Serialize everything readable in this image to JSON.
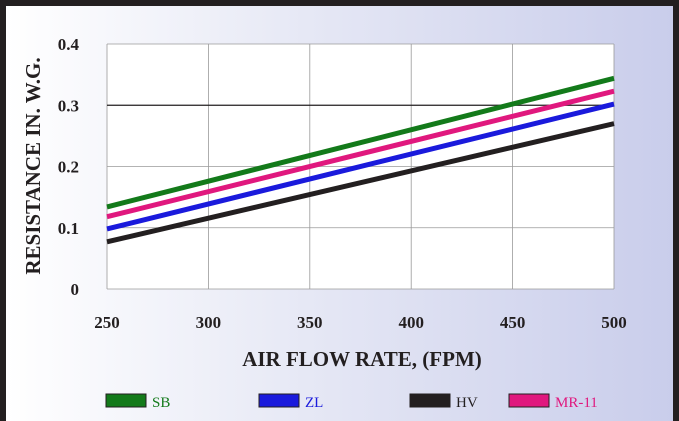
{
  "chart_data": {
    "type": "line",
    "xlabel": "AIR FLOW RATE, (FPM)",
    "ylabel": "RESISTANCE IN. W.G.",
    "x": [
      250,
      500
    ],
    "xticks": [
      250,
      300,
      350,
      400,
      450,
      500
    ],
    "yticks": [
      0,
      0.1,
      0.2,
      0.3,
      0.4
    ],
    "xtick_labels": [
      "250",
      "300",
      "350",
      "400",
      "450",
      "500"
    ],
    "ytick_labels": [
      "0",
      "0.1",
      "0.2",
      "0.3",
      "0.4"
    ],
    "xlim": [
      250,
      500
    ],
    "ylim": [
      0,
      0.4
    ],
    "grid": true,
    "legend_position": "bottom",
    "series": [
      {
        "name": "SB",
        "color": "#137a1a",
        "values": [
          0.134,
          0.344
        ]
      },
      {
        "name": "ZL",
        "color": "#1a1adc",
        "values": [
          0.098,
          0.302
        ]
      },
      {
        "name": "HV",
        "color": "#231f20",
        "values": [
          0.077,
          0.27
        ]
      },
      {
        "name": "MR-11",
        "color": "#e0187e",
        "values": [
          0.118,
          0.323
        ]
      }
    ]
  }
}
